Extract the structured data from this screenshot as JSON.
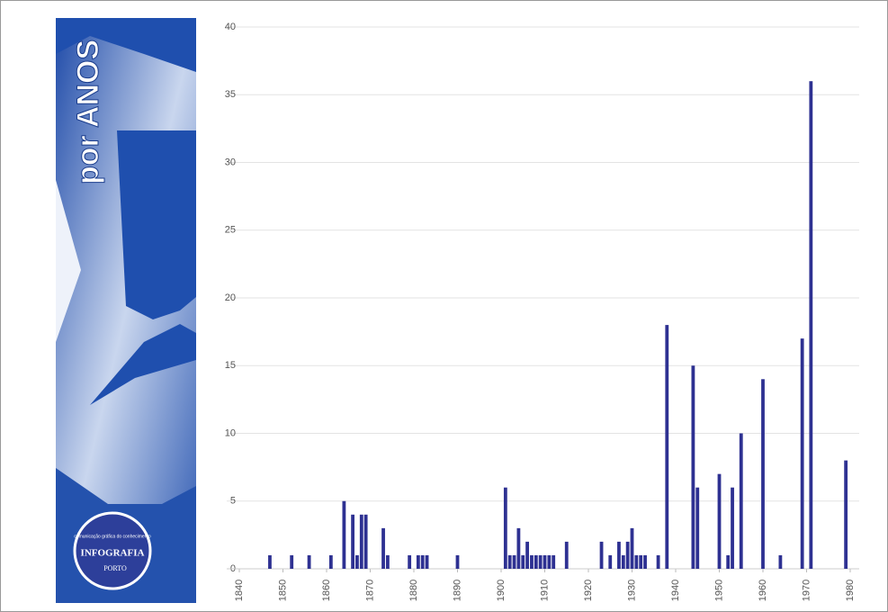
{
  "panel": {
    "title": "por ANOS",
    "badge_caption": "comunicação gráfica do conhecimento",
    "badge_title": "INFOGRAFIA",
    "badge_footer": "PORTO"
  },
  "chart_data": {
    "type": "bar",
    "color": "#2e3192",
    "grid": true,
    "x": [
      1847,
      1852,
      1856,
      1861,
      1864,
      1866,
      1867,
      1868,
      1869,
      1873,
      1874,
      1879,
      1881,
      1882,
      1883,
      1890,
      1901,
      1902,
      1903,
      1904,
      1905,
      1906,
      1907,
      1908,
      1909,
      1910,
      1911,
      1912,
      1915,
      1923,
      1925,
      1927,
      1928,
      1929,
      1930,
      1931,
      1932,
      1933,
      1936,
      1938,
      1944,
      1945,
      1950,
      1952,
      1953,
      1955,
      1960,
      1964,
      1969,
      1971,
      1979
    ],
    "values": [
      1,
      1,
      1,
      1,
      5,
      4,
      1,
      4,
      4,
      3,
      1,
      1,
      1,
      1,
      1,
      1,
      6,
      1,
      1,
      3,
      1,
      2,
      1,
      1,
      1,
      1,
      1,
      1,
      2,
      2,
      1,
      2,
      1,
      2,
      3,
      1,
      1,
      1,
      1,
      18,
      15,
      6,
      7,
      1,
      6,
      10,
      14,
      1,
      17,
      36,
      8
    ],
    "xlim": [
      1840,
      1980
    ],
    "xticks": [
      1840,
      1850,
      1860,
      1870,
      1880,
      1890,
      1900,
      1910,
      1920,
      1930,
      1940,
      1950,
      1960,
      1970,
      1980
    ],
    "ylim": [
      0,
      40
    ],
    "yticks": [
      0,
      5,
      10,
      15,
      20,
      25,
      30,
      35,
      40
    ]
  }
}
